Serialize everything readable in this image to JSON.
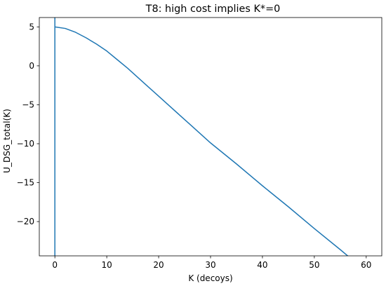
{
  "chart_data": {
    "type": "line",
    "title": "T8: high cost implies K*=0",
    "xlabel": "K (decoys)",
    "ylabel": "U_DSG_total(K)",
    "xlim": [
      -3,
      63
    ],
    "ylim": [
      -24.4,
      6.2
    ],
    "xticks": [
      0,
      10,
      20,
      30,
      40,
      50,
      60
    ],
    "yticks": [
      5,
      0,
      -5,
      -10,
      -15,
      -20
    ],
    "grid": false,
    "colors": {
      "series": "#1f77b4",
      "axes": "#000000"
    },
    "series": [
      {
        "x": [
          0,
          2,
          4,
          6,
          8,
          10,
          12,
          14,
          16,
          18,
          20,
          22,
          24,
          26,
          28,
          30,
          35,
          40,
          45,
          50,
          55,
          60
        ],
        "values": [
          5.0,
          4.8,
          4.3,
          3.6,
          2.8,
          1.9,
          0.8,
          -0.3,
          -1.5,
          -2.7,
          -3.9,
          -5.1,
          -6.3,
          -7.5,
          -8.7,
          -9.9,
          -12.6,
          -15.4,
          -18.1,
          -20.9,
          -23.6,
          -26.4
        ]
      }
    ],
    "annotations": [
      {
        "type": "vline",
        "x": 0
      }
    ]
  }
}
